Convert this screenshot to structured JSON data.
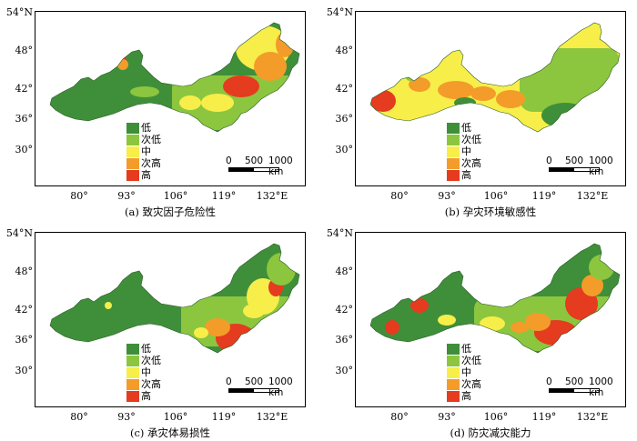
{
  "legend": [
    "低",
    "次低",
    "中",
    "次高",
    "高"
  ],
  "colors": {
    "low": "#3f8f3a",
    "mid_low": "#8cc63f",
    "mid": "#f7ee4a",
    "mid_high": "#f39c2a",
    "high": "#e53b1f",
    "outside": "#ffffff"
  },
  "axes": {
    "y_ticks": [
      "54°N",
      "48°",
      "42°",
      "36°",
      "30°"
    ],
    "x_ticks": [
      "80°",
      "93°",
      "106°",
      "119°",
      "132°E"
    ]
  },
  "scale_bar": {
    "zero": "0",
    "mid": "500",
    "end": "1000 km"
  },
  "panels": [
    {
      "id": "a",
      "caption": "(a) 致灾因子危险性"
    },
    {
      "id": "b",
      "caption": "(b) 孕灾环境敏感性"
    },
    {
      "id": "c",
      "caption": "(c) 承灾体易损性"
    },
    {
      "id": "d",
      "caption": "(d) 防灾减灾能力"
    }
  ]
}
